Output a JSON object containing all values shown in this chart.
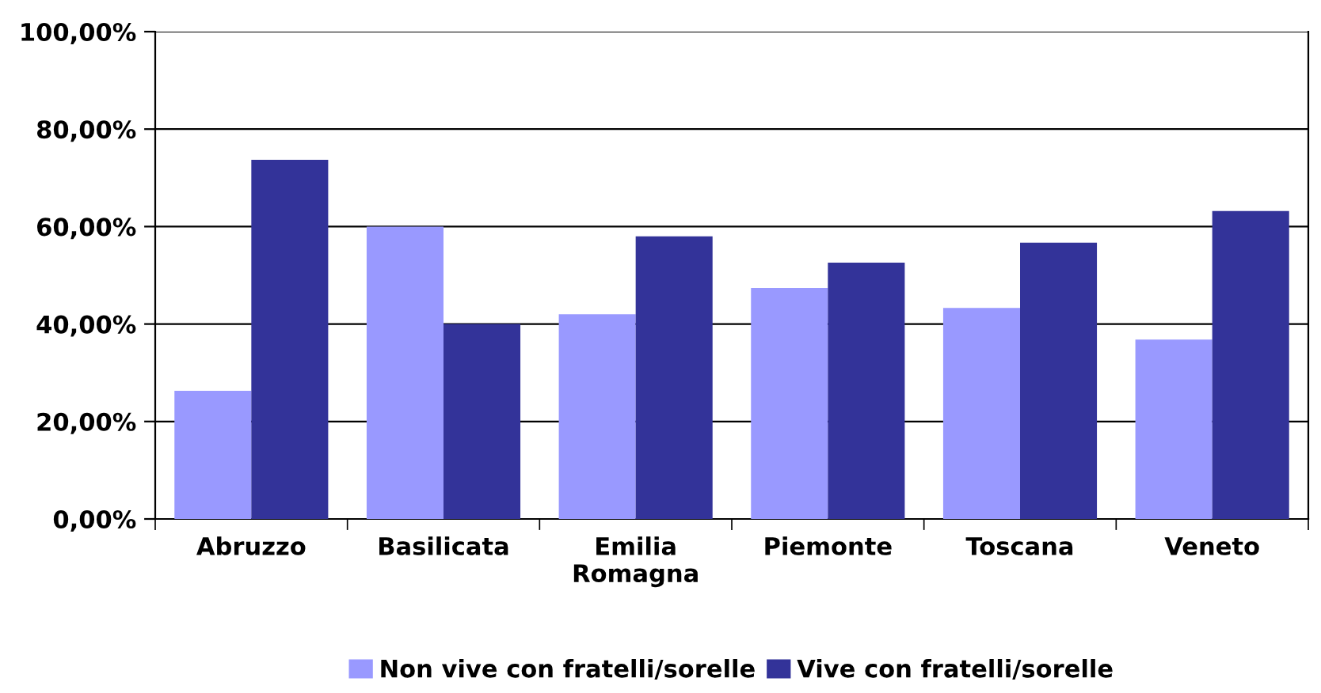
{
  "chart_data": {
    "type": "bar",
    "categories": [
      "Abruzzo",
      "Basilicata",
      "Emilia Romagna",
      "Piemonte",
      "Toscana",
      "Veneto"
    ],
    "series": [
      {
        "name": "Non vive con fratelli/sorelle",
        "color": "#9999ff",
        "values": [
          26.3,
          60.0,
          42.0,
          47.4,
          43.3,
          36.8
        ]
      },
      {
        "name": "Vive con fratelli/sorelle",
        "color": "#333399",
        "values": [
          73.7,
          40.0,
          58.0,
          52.6,
          56.7,
          63.2
        ]
      }
    ],
    "ylim": [
      0,
      100
    ],
    "yticks": [
      {
        "value": 0,
        "label": "0,00%"
      },
      {
        "value": 20,
        "label": "20,00%"
      },
      {
        "value": 40,
        "label": "40,00%"
      },
      {
        "value": 60,
        "label": "60,00%"
      },
      {
        "value": 80,
        "label": "80,00%"
      },
      {
        "value": 100,
        "label": "100,00%"
      }
    ],
    "grid": "y",
    "legend": "bottom"
  }
}
